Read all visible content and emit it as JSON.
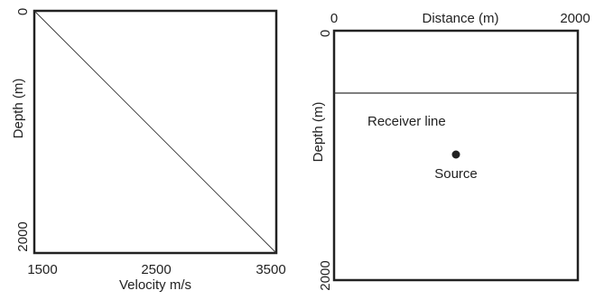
{
  "chart_data": [
    {
      "type": "line",
      "xlabel": "Velocity m/s",
      "ylabel": "Depth (m)",
      "xlim": [
        1500,
        3500
      ],
      "ylim": [
        0,
        2000
      ],
      "x_ticks": [
        "1500",
        "2500",
        "3500"
      ],
      "y_ticks": [
        "0",
        "2000"
      ],
      "x_axis_position": "bottom",
      "y_axis_inverted": true,
      "grid": false,
      "series": [
        {
          "x": [
            1500,
            3500
          ],
          "y": [
            0,
            2000
          ]
        }
      ]
    },
    {
      "type": "scatter",
      "xlabel": "Distance (m)",
      "ylabel": "Depth (m)",
      "xlim": [
        0,
        2000
      ],
      "ylim": [
        0,
        2000
      ],
      "x_ticks": [
        "0",
        "2000"
      ],
      "y_ticks": [
        "0",
        "2000"
      ],
      "x_axis_position": "top",
      "y_axis_inverted": true,
      "grid": false,
      "receiver_line": {
        "label": "Receiver line",
        "depth": 500
      },
      "source": {
        "label": "Source",
        "x": 1000,
        "y": 1000
      }
    }
  ]
}
